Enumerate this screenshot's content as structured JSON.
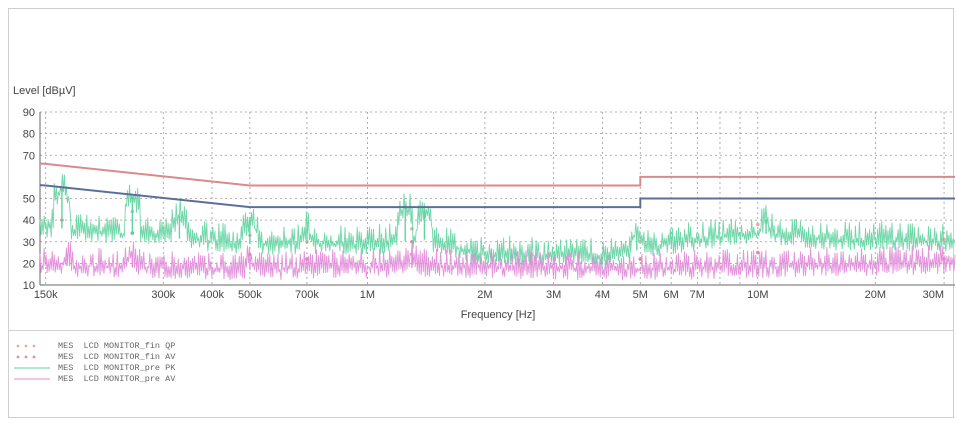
{
  "chart_data": {
    "type": "line",
    "ylabel": "Level [dBµV]",
    "xlabel": "Frequency [Hz]",
    "xscale": "log",
    "xlim": [
      145000,
      32000000
    ],
    "ylim": [
      10,
      90
    ],
    "grid": true,
    "yticks": [
      {
        "value": 10,
        "label": "10"
      },
      {
        "value": 20,
        "label": "20"
      },
      {
        "value": 30,
        "label": "30"
      },
      {
        "value": 40,
        "label": "40"
      },
      {
        "value": 50,
        "label": "50"
      },
      {
        "value": 70,
        "label": "70"
      },
      {
        "value": 80,
        "label": "80"
      },
      {
        "value": 90,
        "label": "90"
      }
    ],
    "xticks": [
      {
        "value": 150000,
        "label": "150k"
      },
      {
        "value": 300000,
        "label": "300k"
      },
      {
        "value": 400000,
        "label": "400k"
      },
      {
        "value": 500000,
        "label": "500k"
      },
      {
        "value": 700000,
        "label": "700k"
      },
      {
        "value": 1000000,
        "label": "1M"
      },
      {
        "value": 2000000,
        "label": "2M"
      },
      {
        "value": 3000000,
        "label": "3M"
      },
      {
        "value": 4000000,
        "label": "4M"
      },
      {
        "value": 5000000,
        "label": "5M"
      },
      {
        "value": 6000000,
        "label": "6M"
      },
      {
        "value": 7000000,
        "label": "7M"
      },
      {
        "value": 10000000,
        "label": "10M"
      },
      {
        "value": 20000000,
        "label": "20M"
      },
      {
        "value": 30000000,
        "label": "30M"
      }
    ],
    "limit_lines": [
      {
        "color": "#d98a8a",
        "x": [
          145000,
          150000,
          500000,
          5000000,
          5000000,
          32000000
        ],
        "y": [
          66.2,
          66,
          56,
          56,
          60,
          60
        ]
      },
      {
        "color": "#5c6f9a",
        "x": [
          145000,
          150000,
          500000,
          5000000,
          5000000,
          32000000
        ],
        "y": [
          56.2,
          56,
          46,
          46,
          50,
          50
        ]
      }
    ],
    "series": [
      {
        "name": "MES  LCD MONITOR_fin QP",
        "color": "#f0a8a8",
        "style": "dotted",
        "x": [
          165000,
          250000,
          500000,
          700000,
          1300000,
          5000000,
          10000000,
          30000000
        ],
        "y": [
          54,
          44,
          33,
          30,
          36,
          30,
          38,
          31
        ]
      },
      {
        "name": "MES  LCD MONITOR_fin AV",
        "color": "#e38aa0",
        "style": "dotted",
        "x": [
          165000,
          250000,
          500000,
          700000,
          1300000,
          5000000,
          10000000,
          30000000
        ],
        "y": [
          40,
          34,
          24,
          22,
          30,
          22,
          25,
          22
        ]
      },
      {
        "name": "MES  LCD MONITOR_pre PK",
        "color": "#5fd3a0",
        "style": "noise",
        "baseline": [
          {
            "x": 145000,
            "y": 37
          },
          {
            "x": 300000,
            "y": 32
          },
          {
            "x": 500000,
            "y": 29
          },
          {
            "x": 1000000,
            "y": 29
          },
          {
            "x": 1400000,
            "y": 31
          },
          {
            "x": 2000000,
            "y": 24
          },
          {
            "x": 4000000,
            "y": 23
          },
          {
            "x": 6000000,
            "y": 29
          },
          {
            "x": 10000000,
            "y": 34
          },
          {
            "x": 15000000,
            "y": 31
          },
          {
            "x": 32000000,
            "y": 30
          }
        ],
        "peaks": [
          {
            "x": 165000,
            "y": 55
          },
          {
            "x": 250000,
            "y": 51
          },
          {
            "x": 330000,
            "y": 42
          },
          {
            "x": 500000,
            "y": 40
          },
          {
            "x": 700000,
            "y": 36
          },
          {
            "x": 1250000,
            "y": 47
          },
          {
            "x": 1400000,
            "y": 45
          },
          {
            "x": 4900000,
            "y": 34
          },
          {
            "x": 10500000,
            "y": 40
          }
        ]
      },
      {
        "name": "MES  LCD MONITOR_pre AV",
        "color": "#e08ad8",
        "style": "noise",
        "baseline": [
          {
            "x": 145000,
            "y": 19
          },
          {
            "x": 500000,
            "y": 17
          },
          {
            "x": 1000000,
            "y": 18
          },
          {
            "x": 2000000,
            "y": 18
          },
          {
            "x": 5000000,
            "y": 17
          },
          {
            "x": 10000000,
            "y": 18
          },
          {
            "x": 32000000,
            "y": 20
          }
        ],
        "peaks": [
          {
            "x": 170000,
            "y": 24
          },
          {
            "x": 250000,
            "y": 24
          },
          {
            "x": 500000,
            "y": 22
          },
          {
            "x": 1300000,
            "y": 25
          }
        ]
      }
    ]
  }
}
